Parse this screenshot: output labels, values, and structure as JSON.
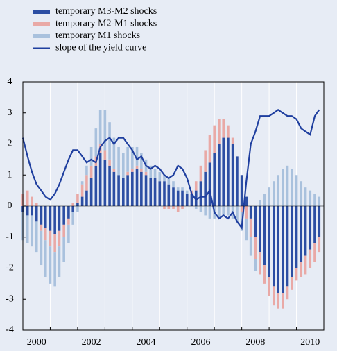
{
  "chart_data": {
    "type": "bar",
    "stacked": true,
    "x": [
      2000,
      2000.17,
      2000.33,
      2000.5,
      2000.67,
      2000.83,
      2001,
      2001.17,
      2001.33,
      2001.5,
      2001.67,
      2001.83,
      2002,
      2002.17,
      2002.33,
      2002.5,
      2002.67,
      2002.83,
      2003,
      2003.17,
      2003.33,
      2003.5,
      2003.67,
      2003.83,
      2004,
      2004.17,
      2004.33,
      2004.5,
      2004.67,
      2004.83,
      2005,
      2005.17,
      2005.33,
      2005.5,
      2005.67,
      2005.83,
      2006,
      2006.17,
      2006.33,
      2006.5,
      2006.67,
      2006.83,
      2007,
      2007.17,
      2007.33,
      2007.5,
      2007.67,
      2007.83,
      2008,
      2008.17,
      2008.33,
      2008.5,
      2008.67,
      2008.83,
      2009,
      2009.17,
      2009.33,
      2009.5,
      2009.67,
      2009.83,
      2010,
      2010.17,
      2010.33,
      2010.5,
      2010.67,
      2010.83
    ],
    "series": [
      {
        "name": "temporary M3-M2 shocks",
        "color": "#2c4ea3",
        "type": "bar",
        "values": [
          -0.2,
          -0.3,
          -0.3,
          -0.5,
          -0.6,
          -0.7,
          -0.8,
          -0.9,
          -0.8,
          -0.6,
          -0.4,
          -0.2,
          0.1,
          0.3,
          0.5,
          0.9,
          1.3,
          1.7,
          1.5,
          1.3,
          1.1,
          1.0,
          0.9,
          1.0,
          1.1,
          1.2,
          1.1,
          1.0,
          0.9,
          0.9,
          0.8,
          0.8,
          0.7,
          0.6,
          0.5,
          0.5,
          0.4,
          0.4,
          0.5,
          0.8,
          1.1,
          1.4,
          1.7,
          2.0,
          2.2,
          2.2,
          2.0,
          1.6,
          1.0,
          0.3,
          -0.4,
          -1.0,
          -1.5,
          -1.9,
          -2.3,
          -2.6,
          -2.8,
          -2.8,
          -2.6,
          -2.3,
          -2.0,
          -1.8,
          -1.6,
          -1.4,
          -1.2,
          -1.0
        ]
      },
      {
        "name": "temporary M2-M1 shocks",
        "color": "#e9a9a6",
        "type": "bar",
        "values": [
          0.4,
          0.5,
          0.3,
          0.1,
          -0.2,
          -0.4,
          -0.5,
          -0.6,
          -0.5,
          -0.4,
          -0.2,
          0.1,
          0.3,
          0.4,
          0.5,
          0.4,
          0.3,
          0.3,
          0.3,
          0.2,
          0.1,
          0.0,
          0.0,
          0.1,
          0.1,
          0.1,
          0.1,
          0.1,
          0.0,
          0.0,
          0.0,
          -0.1,
          -0.1,
          -0.1,
          -0.2,
          -0.1,
          0.0,
          0.1,
          0.3,
          0.5,
          0.7,
          0.9,
          0.9,
          0.8,
          0.6,
          0.4,
          0.2,
          0.0,
          -0.2,
          -0.4,
          -0.6,
          -0.7,
          -0.7,
          -0.6,
          -0.6,
          -0.6,
          -0.5,
          -0.5,
          -0.4,
          -0.4,
          -0.4,
          -0.5,
          -0.6,
          -0.6,
          -0.6,
          -0.5
        ]
      },
      {
        "name": "temporary M1 shocks",
        "color": "#a9c1dd",
        "type": "bar",
        "values": [
          -0.9,
          -0.9,
          -1.0,
          -1.0,
          -1.1,
          -1.2,
          -1.2,
          -1.1,
          -1.0,
          -0.8,
          -0.6,
          -0.4,
          -0.2,
          0.1,
          0.3,
          0.6,
          0.9,
          1.1,
          1.3,
          1.2,
          1.0,
          0.9,
          0.8,
          0.8,
          0.7,
          0.6,
          0.5,
          0.4,
          0.4,
          0.3,
          0.3,
          0.2,
          0.2,
          0.2,
          0.1,
          0.1,
          0.1,
          0.0,
          -0.1,
          -0.2,
          -0.3,
          -0.4,
          -0.4,
          -0.4,
          -0.3,
          -0.3,
          -0.4,
          -0.5,
          -0.6,
          -0.7,
          -0.6,
          -0.4,
          0.2,
          0.4,
          0.6,
          0.8,
          1.0,
          1.2,
          1.3,
          1.2,
          1.0,
          0.8,
          0.6,
          0.5,
          0.4,
          0.3
        ]
      },
      {
        "name": "slope of the yield curve",
        "color": "#1f3f9f",
        "type": "line",
        "values": [
          2.2,
          1.6,
          1.1,
          0.7,
          0.5,
          0.3,
          0.2,
          0.4,
          0.7,
          1.1,
          1.5,
          1.8,
          1.8,
          1.6,
          1.4,
          1.5,
          1.4,
          1.9,
          2.1,
          2.2,
          2.0,
          2.2,
          2.2,
          2.0,
          1.8,
          1.5,
          1.6,
          1.3,
          1.2,
          1.3,
          1.2,
          1.0,
          0.9,
          1.0,
          1.3,
          1.2,
          0.9,
          0.4,
          0.2,
          0.3,
          0.3,
          0.5,
          -0.2,
          -0.4,
          -0.3,
          -0.4,
          -0.2,
          -0.5,
          -0.7,
          0.8,
          2.0,
          2.4,
          2.9,
          2.9,
          2.9,
          3.0,
          3.1,
          3.0,
          2.9,
          2.9,
          2.8,
          2.5,
          2.4,
          2.3,
          2.9,
          3.1
        ]
      }
    ],
    "xlim": [
      2000,
      2011
    ],
    "xticks": [
      {
        "value": 2000.5,
        "label": "2000"
      },
      {
        "value": 2002.5,
        "label": "2002"
      },
      {
        "value": 2004.5,
        "label": "2004"
      },
      {
        "value": 2006.5,
        "label": "2006"
      },
      {
        "value": 2008.5,
        "label": "2008"
      },
      {
        "value": 2010.5,
        "label": "2010"
      }
    ],
    "xgrid": [
      2001,
      2002,
      2003,
      2004,
      2005,
      2006,
      2007,
      2008,
      2009,
      2010
    ],
    "ylim": [
      -4,
      4
    ],
    "yticks": [
      -4,
      -3,
      -2,
      -1,
      0,
      1,
      2,
      3,
      4
    ],
    "grid": true,
    "legend": "top-left"
  }
}
